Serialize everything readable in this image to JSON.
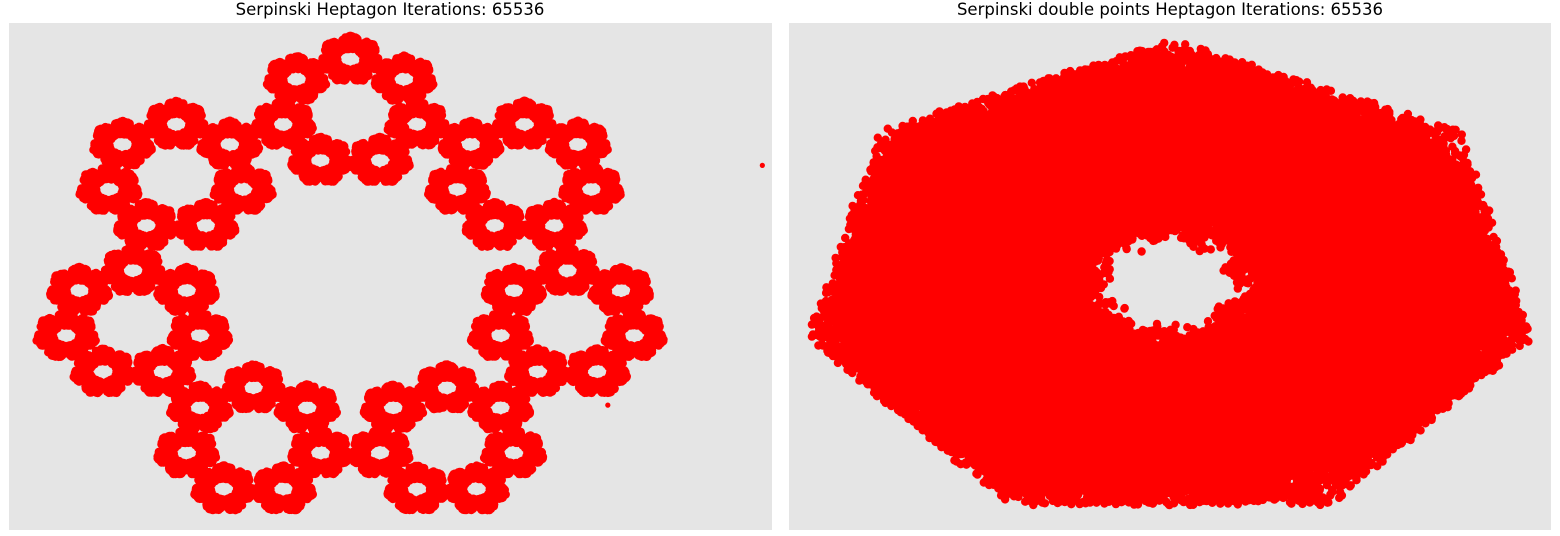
{
  "chart_data": [
    {
      "type": "scatter",
      "title": "Serpinski Heptagon Iterations: 65536",
      "iterations": 65536,
      "polygon_sides": 7,
      "variant": "single",
      "series": [
        {
          "color": "#ff0000"
        }
      ],
      "background_color": "#e5e5e5",
      "axes_visible": false,
      "grid": false,
      "legend": "none",
      "xlim": [
        -1.06,
        1.31
      ],
      "ylim": [
        -0.98,
        1.05
      ],
      "stray_points": [
        {
          "x": 1.28,
          "y": 0.48
        },
        {
          "x": 0.8,
          "y": -0.48
        }
      ]
    },
    {
      "type": "scatter",
      "title": "Serpinski double points Heptagon Iterations: 65536",
      "iterations": 65536,
      "polygon_sides": 7,
      "variant": "double",
      "series": [
        {
          "color": "#ff0000"
        }
      ],
      "background_color": "#e5e5e5",
      "axes_visible": false,
      "grid": false,
      "legend": "none",
      "xlim": [
        -1.02,
        1.02
      ],
      "ylim": [
        -1.0,
        1.06
      ]
    }
  ]
}
